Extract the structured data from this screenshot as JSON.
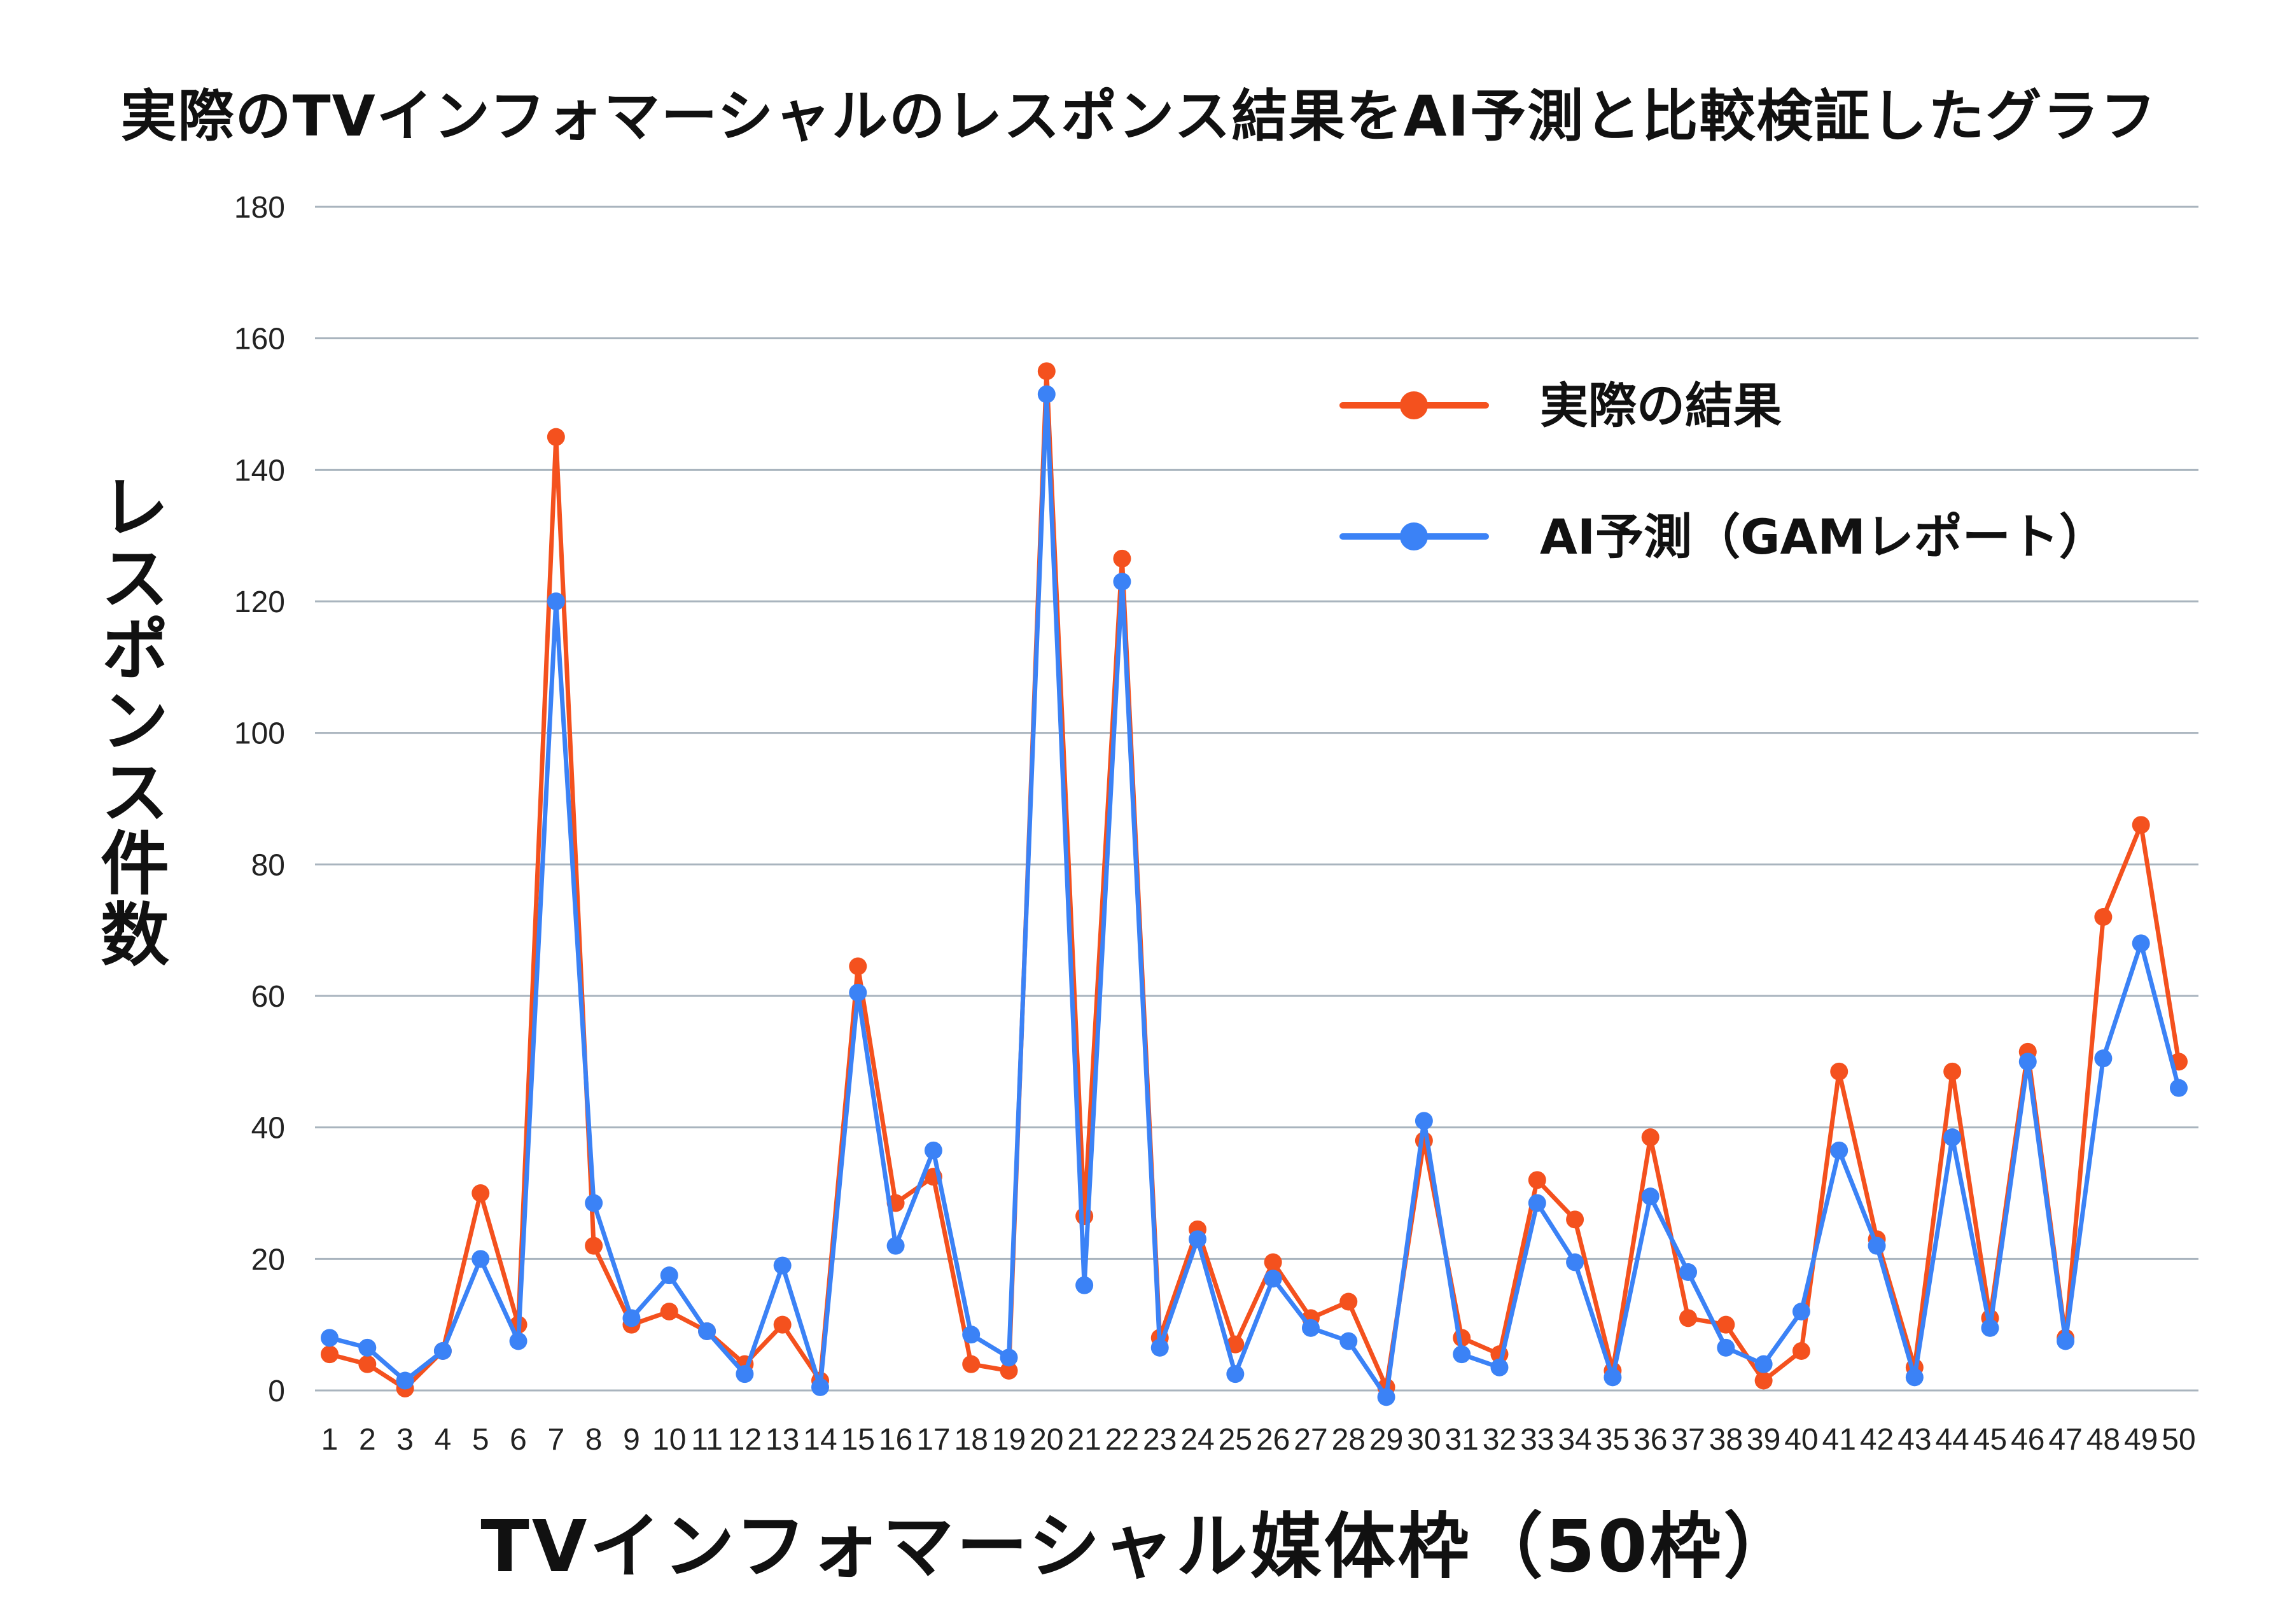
{
  "chart_data": {
    "type": "line",
    "title": "実際のTVインフォマーシャルのレスポンス結果をAI予測と比較検証したグラフ",
    "xlabel": "TVインフォマーシャル媒体枠（50枠）",
    "ylabel": "レスポンス件数",
    "ylim": [
      0,
      180
    ],
    "yticks": [
      0,
      20,
      40,
      60,
      80,
      100,
      120,
      140,
      160,
      180
    ],
    "grid": true,
    "legend_position": "top-right",
    "categories": [
      "1",
      "2",
      "3",
      "4",
      "5",
      "6",
      "7",
      "8",
      "9",
      "10",
      "11",
      "12",
      "13",
      "14",
      "15",
      "16",
      "17",
      "18",
      "19",
      "20",
      "21",
      "22",
      "23",
      "24",
      "25",
      "26",
      "27",
      "28",
      "29",
      "30",
      "31",
      "32",
      "33",
      "34",
      "35",
      "36",
      "37",
      "38",
      "39",
      "40",
      "41",
      "42",
      "43",
      "44",
      "45",
      "46",
      "47",
      "48",
      "49",
      "50"
    ],
    "series": [
      {
        "name": "実際の結果",
        "color": "#f4511e",
        "values": [
          5.5,
          4,
          0.3,
          6,
          30,
          10,
          145,
          22,
          10,
          12,
          9,
          4,
          10,
          1.5,
          64.5,
          28.5,
          32.5,
          4,
          3,
          155,
          26.5,
          126.5,
          8,
          24.5,
          7,
          19.5,
          11,
          13.5,
          0.5,
          38,
          8,
          5.5,
          32,
          26,
          3,
          38.5,
          11,
          10,
          1.5,
          6,
          48.5,
          23,
          3.5,
          48.5,
          11,
          51.5,
          8,
          72,
          86,
          50
        ]
      },
      {
        "name": "AI予測（GAMレポート）",
        "color": "#3b82f6",
        "values": [
          8,
          6.5,
          1.5,
          6,
          20,
          7.5,
          120,
          28.5,
          11,
          17.5,
          9,
          2.5,
          19,
          0.5,
          60.5,
          22,
          36.5,
          8.5,
          5,
          151.5,
          16,
          123,
          6.5,
          23,
          2.5,
          17,
          9.5,
          7.5,
          -1,
          41,
          5.5,
          3.5,
          28.5,
          19.5,
          2,
          29.5,
          18,
          6.5,
          4,
          12,
          36.5,
          22,
          2,
          38.5,
          9.5,
          50,
          7.5,
          50.5,
          68,
          46
        ]
      }
    ]
  }
}
